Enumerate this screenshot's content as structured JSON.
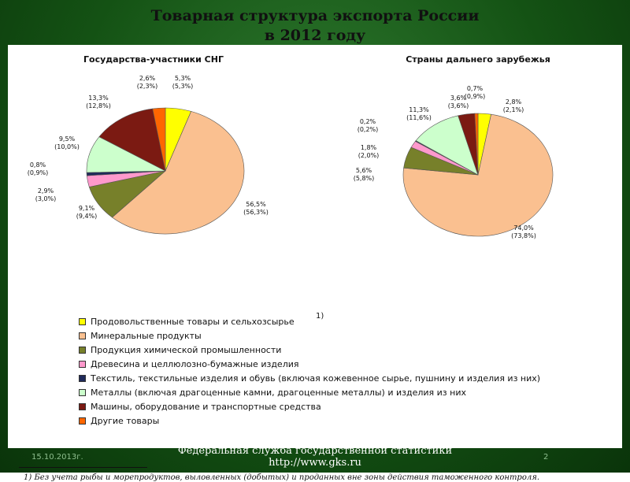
{
  "title": {
    "line1": "Товарная структура экспорта России",
    "line2": "в 2012 году"
  },
  "colors": {
    "food": "#ffff00",
    "mineral": "#fac090",
    "chemical": "#77802a",
    "wood": "#ff99cc",
    "textile": "#1f2a5a",
    "metals": "#ccffcc",
    "machinery": "#7b1a12",
    "other": "#ff6600"
  },
  "chart_data": [
    {
      "type": "pie",
      "title": "Государства-участники СНГ",
      "categories": [
        "food",
        "mineral",
        "chemical",
        "wood",
        "textile",
        "metals",
        "machinery",
        "other"
      ],
      "values": [
        5.3,
        56.5,
        9.1,
        2.9,
        0.8,
        9.5,
        13.3,
        2.6
      ],
      "labels": [
        "5,3%",
        "56,5%",
        "9,1%",
        "2,9%",
        "0,8%",
        "9,5%",
        "13,3%",
        "2,6%"
      ],
      "labels_prev": [
        "(5,3%)",
        "(56,3%)",
        "(9,4%)",
        "(3,0%)",
        "(0,9%)",
        "(10,0%)",
        "(12,8%)",
        "(2,3%)"
      ]
    },
    {
      "type": "pie",
      "title": "Страны дальнего зарубежья",
      "categories": [
        "food",
        "mineral",
        "chemical",
        "wood",
        "textile",
        "metals",
        "machinery",
        "other"
      ],
      "values": [
        2.8,
        74.0,
        5.6,
        1.8,
        0.2,
        11.3,
        3.6,
        0.7
      ],
      "labels": [
        "2,8%",
        "74,0%",
        "5,6%",
        "1,8%",
        "0,2%",
        "11,3%",
        "3,6%",
        "0,7%"
      ],
      "labels_prev": [
        "(2,1%)",
        "(73,8%)",
        "(5,8%)",
        "(2,0%)",
        "(0,2%)",
        "(11,6%)",
        "(3,6%)",
        "(0,9%)"
      ]
    }
  ],
  "legend": [
    {
      "key": "food",
      "label": "Продовольственные товары и сельхозсырье"
    },
    {
      "key": "mineral",
      "label": "Минеральные продукты"
    },
    {
      "key": "chemical",
      "label": "Продукция химической промышленности"
    },
    {
      "key": "wood",
      "label": "Древесина и целлюлозно-бумажные изделия"
    },
    {
      "key": "textile",
      "label": "Текстиль, текстильные изделия и обувь (включая кожевенное сырье, пушнину и изделия из них)"
    },
    {
      "key": "metals",
      "label": "Металлы (включая драгоценные камни, драгоценные металлы) и изделия из них"
    },
    {
      "key": "machinery",
      "label": "Машины, оборудование и транспортные средства"
    },
    {
      "key": "other",
      "label": "Другие товары"
    }
  ],
  "legend_note_mark": "1)",
  "footnote": "1) Без учета рыбы и морепродуктов, выловленных (добытых) и проданных вне зоны действия таможенного контроля.",
  "footer": {
    "date": "15.10.2013г.",
    "agency": "Федеральная служба государственной статистики",
    "url": "http://www.gks.ru",
    "page": "2"
  }
}
